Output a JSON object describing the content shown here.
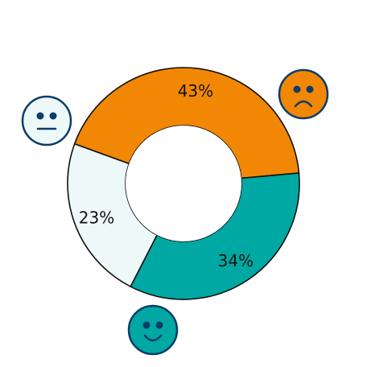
{
  "chart_data": {
    "type": "pie",
    "donut": true,
    "legend": "none",
    "slices": [
      {
        "value": 43,
        "label": "43%",
        "color": "#f28705",
        "icon": "sad-face-icon"
      },
      {
        "value": 34,
        "label": "34%",
        "color": "#00a8a3",
        "icon": "happy-face-icon"
      },
      {
        "value": 23,
        "label": "23%",
        "color": "#edf8f8",
        "icon": "neutral-face-icon"
      }
    ],
    "outline_color": "#111111",
    "icon_outline_color": "#0c3c6b"
  }
}
